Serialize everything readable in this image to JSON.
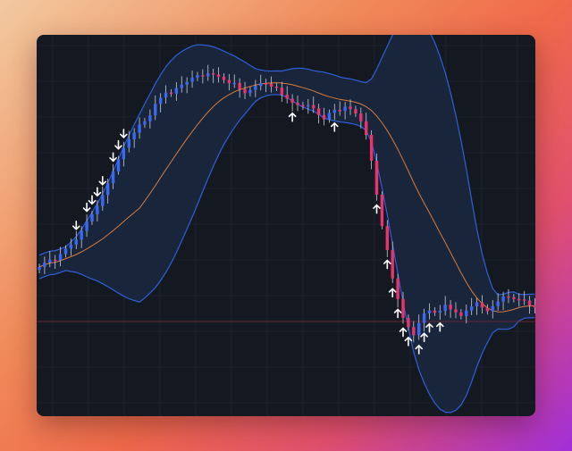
{
  "chart_data": {
    "type": "candlestick",
    "xlabel": "",
    "ylabel": "",
    "ylim": [
      0,
      100
    ],
    "grid": true,
    "legend": "none",
    "colors": {
      "background": "#141821",
      "grid": "#222a38",
      "bull": "#3b68f0",
      "bear": "#e8336d",
      "wick": "#c9ccd3",
      "bands": "#2f5fd8",
      "band_fill": "#1b2a44",
      "middle": "#d97a3a",
      "hline": "#6a2434",
      "marker": "#ffffff"
    },
    "hline": 24.2,
    "close": [
      39.0,
      40.2,
      41.0,
      40.8,
      42.5,
      44.0,
      45.1,
      46.4,
      48.8,
      51.3,
      53.3,
      55.5,
      58.5,
      61.7,
      64.9,
      68.2,
      71.3,
      73.6,
      75.4,
      77.6,
      78.5,
      80.1,
      83.2,
      84.9,
      86.3,
      86.0,
      87.5,
      88.4,
      89.2,
      90.3,
      91.0,
      90.7,
      91.5,
      91.2,
      90.6,
      89.7,
      88.8,
      88.9,
      87.2,
      86.1,
      87.0,
      88.1,
      88.8,
      88.7,
      87.9,
      87.6,
      85.7,
      84.6,
      83.5,
      82.9,
      82.5,
      82.9,
      82.0,
      80.2,
      79.0,
      80.8,
      81.6,
      81.3,
      82.5,
      81.8,
      80.6,
      78.5,
      74.8,
      67.8,
      58.6,
      50.1,
      43.6,
      35.9,
      30.3,
      25.2,
      22.7,
      20.5,
      23.8,
      26.4,
      27.2,
      26.6,
      27.1,
      28.8,
      27.5,
      26.7,
      25.7,
      27.2,
      28.3,
      29.4,
      28.0,
      27.0,
      28.4,
      29.6,
      31.0,
      30.8,
      30.3,
      30.2,
      29.9,
      28.6,
      28.0
    ],
    "markers": {
      "down_arrows": [
        7,
        9,
        10,
        11,
        12,
        14,
        15,
        16
      ],
      "up_arrows": [
        48,
        56,
        64,
        66,
        67,
        68,
        69,
        70,
        72,
        73,
        74,
        76
      ]
    }
  }
}
